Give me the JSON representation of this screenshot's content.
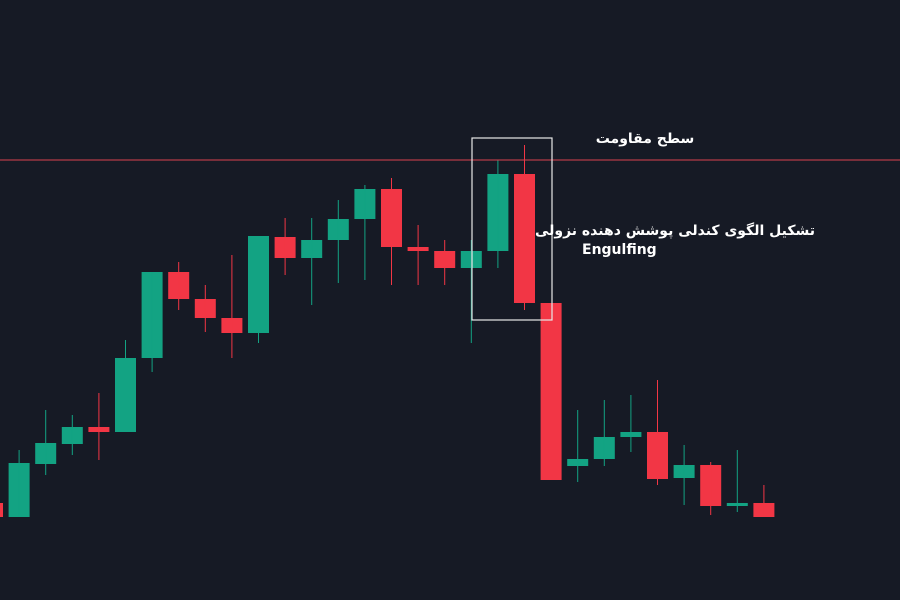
{
  "chart_data": {
    "type": "candlestick",
    "ylim": [
      0,
      600
    ],
    "up_color": "#13a383",
    "down_color": "#f23645",
    "candles": [
      {
        "open": 97,
        "high": 97,
        "low": 83,
        "close": 83
      },
      {
        "open": 83,
        "high": 150,
        "low": 83,
        "close": 137
      },
      {
        "open": 136,
        "high": 190,
        "low": 125,
        "close": 157
      },
      {
        "open": 156,
        "high": 185,
        "low": 145,
        "close": 173
      },
      {
        "open": 173,
        "high": 207,
        "low": 140,
        "close": 168
      },
      {
        "open": 168,
        "high": 260,
        "low": 168,
        "close": 242
      },
      {
        "open": 242,
        "high": 328,
        "low": 228,
        "close": 328
      },
      {
        "open": 328,
        "high": 338,
        "low": 290,
        "close": 301
      },
      {
        "open": 301,
        "high": 315,
        "low": 268,
        "close": 282
      },
      {
        "open": 282,
        "high": 345,
        "low": 242,
        "close": 267
      },
      {
        "open": 267,
        "high": 364,
        "low": 257,
        "close": 364
      },
      {
        "open": 363,
        "high": 382,
        "low": 325,
        "close": 342
      },
      {
        "open": 342,
        "high": 382,
        "low": 295,
        "close": 360
      },
      {
        "open": 360,
        "high": 400,
        "low": 317,
        "close": 381
      },
      {
        "open": 381,
        "high": 415,
        "low": 320,
        "close": 411
      },
      {
        "open": 411,
        "high": 422,
        "low": 315,
        "close": 353
      },
      {
        "open": 353,
        "high": 375,
        "low": 315,
        "close": 349
      },
      {
        "open": 349,
        "high": 360,
        "low": 315,
        "close": 332
      },
      {
        "open": 332,
        "high": 360,
        "low": 257,
        "close": 349
      },
      {
        "open": 349,
        "high": 440,
        "low": 332,
        "close": 426
      },
      {
        "open": 426,
        "high": 455,
        "low": 290,
        "close": 297
      },
      {
        "open": 297,
        "high": 297,
        "low": 120,
        "close": 120
      },
      {
        "open": 134,
        "high": 190,
        "low": 118,
        "close": 141
      },
      {
        "open": 141,
        "high": 200,
        "low": 134,
        "close": 163
      },
      {
        "open": 163,
        "high": 205,
        "low": 148,
        "close": 168
      },
      {
        "open": 168,
        "high": 220,
        "low": 115,
        "close": 121
      },
      {
        "open": 122,
        "high": 155,
        "low": 95,
        "close": 135
      },
      {
        "open": 135,
        "high": 138,
        "low": 85,
        "close": 94
      },
      {
        "open": 94,
        "high": 150,
        "low": 88,
        "close": 97
      },
      {
        "open": 97,
        "high": 115,
        "low": 83,
        "close": 83
      }
    ],
    "resistance": {
      "value": 440,
      "color": "#d9424f",
      "label": "سطح مقاومت"
    },
    "annotations": [
      "تشکیل الگوی کندلی پوشش دهنده نزولی",
      "Engulfing"
    ]
  }
}
